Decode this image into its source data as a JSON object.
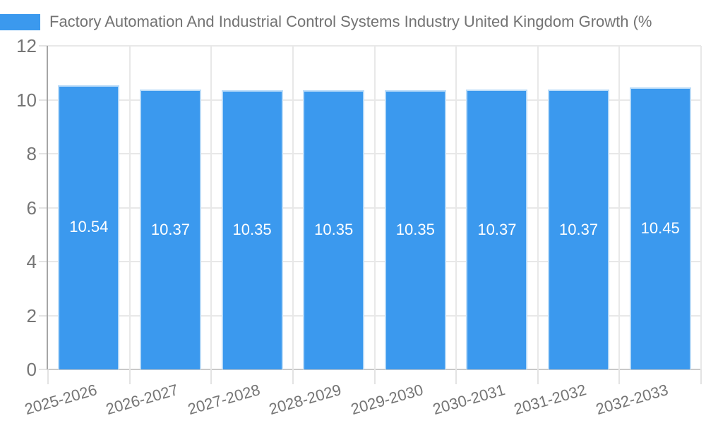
{
  "chart_data": {
    "type": "bar",
    "title": "Factory Automation And Industrial Control Systems Industry United Kingdom Growth (%",
    "categories": [
      "2025-2026",
      "2026-2027",
      "2027-2028",
      "2028-2029",
      "2029-2030",
      "2030-2031",
      "2031-2032",
      "2032-2033"
    ],
    "values": [
      10.54,
      10.37,
      10.35,
      10.35,
      10.35,
      10.37,
      10.37,
      10.45
    ],
    "value_labels": [
      "10.54",
      "10.37",
      "10.35",
      "10.35",
      "10.35",
      "10.37",
      "10.37",
      "10.45"
    ],
    "xlabel": "",
    "ylabel": "",
    "ylim": [
      0,
      12
    ],
    "yticks": [
      0,
      2,
      4,
      6,
      8,
      10,
      12
    ],
    "grid": true,
    "legend_position": "top-left",
    "colors": {
      "bar_fill": "#3B99EE",
      "bar_border": "#B9DBF8",
      "value_label": "#FFFFFF",
      "title_text": "#737373",
      "axis_text": "#757575",
      "gridline": "#E8E8E8",
      "tick_mark": "#E3E3E3",
      "y_axis_line": "#A6A6A6",
      "x_baseline": "#C9C9C9",
      "background": "#FFFFFF"
    }
  }
}
